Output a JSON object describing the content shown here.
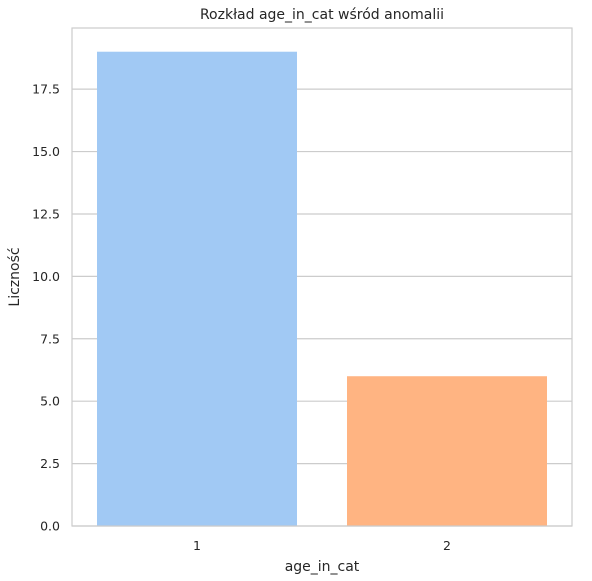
{
  "chart_data": {
    "type": "bar",
    "title": "Rozkład age_in_cat wśród anomalii",
    "xlabel": "age_in_cat",
    "ylabel": "Liczność",
    "categories": [
      "1",
      "2"
    ],
    "values": [
      19,
      6
    ],
    "ylim": [
      0,
      19.95
    ],
    "yticks": [
      0.0,
      2.5,
      5.0,
      7.5,
      10.0,
      12.5,
      15.0,
      17.5
    ],
    "ytick_labels": [
      "0.0",
      "2.5",
      "5.0",
      "7.5",
      "10.0",
      "12.5",
      "15.0",
      "17.5"
    ],
    "grid": true,
    "colors": [
      "#a1c9f4",
      "#ffb482"
    ],
    "grid_color": "#cccccc",
    "spine_color": "#cccccc"
  }
}
